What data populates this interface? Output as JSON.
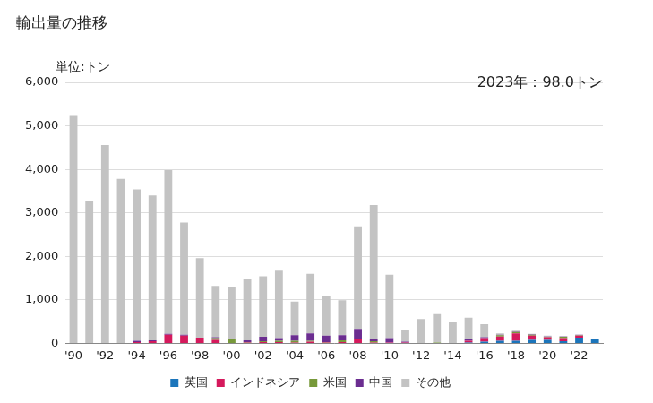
{
  "chart_data": {
    "type": "bar",
    "title": "輸出量の推移",
    "ylabel": "単位:トン",
    "annotation": "2023年：98.0トン",
    "stacked": true,
    "grid": true,
    "legend": "bottom",
    "categories": [
      "'90",
      null,
      "'92",
      null,
      "'94",
      null,
      "'96",
      null,
      "'98",
      null,
      "'00",
      null,
      "'02",
      null,
      "'04",
      null,
      "'06",
      null,
      "'08",
      null,
      "'10",
      null,
      "'12",
      null,
      "'14",
      null,
      "'16",
      null,
      "'18",
      null,
      "'20",
      null,
      "'22",
      null
    ],
    "ylim": [
      0,
      6000
    ],
    "yticks": [
      0,
      {
        "value": 1000,
        "label": "1,000"
      },
      {
        "value": 2000,
        "label": "2,000"
      },
      {
        "value": 3000,
        "label": "3,000"
      },
      {
        "value": 4000,
        "label": "4,000"
      },
      {
        "value": 5000,
        "label": "5,000"
      },
      {
        "value": 6000,
        "label": "6,000"
      }
    ],
    "series": [
      {
        "name": "英国",
        "color": "#1b75bb",
        "values": [
          0,
          0,
          0,
          0,
          0,
          0,
          0,
          0,
          0,
          0,
          0,
          0,
          0,
          0,
          0,
          0,
          0,
          0,
          0,
          0,
          0,
          0,
          0,
          0,
          0,
          20,
          40,
          60,
          60,
          80,
          80,
          50,
          130,
          98
        ]
      },
      {
        "name": "インドネシア",
        "color": "#d5195c",
        "values": [
          0,
          0,
          0,
          0,
          30,
          50,
          200,
          180,
          130,
          80,
          0,
          20,
          30,
          30,
          20,
          40,
          20,
          30,
          90,
          20,
          20,
          20,
          0,
          0,
          0,
          40,
          80,
          100,
          170,
          100,
          60,
          70,
          50,
          0
        ]
      },
      {
        "name": "米国",
        "color": "#77993a",
        "values": [
          0,
          0,
          0,
          0,
          0,
          0,
          0,
          0,
          0,
          40,
          110,
          10,
          20,
          30,
          40,
          20,
          10,
          40,
          10,
          30,
          0,
          0,
          0,
          20,
          0,
          0,
          0,
          30,
          30,
          20,
          10,
          30,
          10,
          0
        ]
      },
      {
        "name": "中国",
        "color": "#6b2d90",
        "values": [
          0,
          0,
          0,
          0,
          30,
          20,
          20,
          20,
          0,
          20,
          0,
          40,
          100,
          60,
          130,
          170,
          150,
          120,
          230,
          60,
          100,
          20,
          0,
          0,
          0,
          40,
          20,
          10,
          10,
          10,
          10,
          10,
          10,
          0
        ]
      },
      {
        "name": "その他",
        "color": "#c3c3c3",
        "values": [
          5250,
          3270,
          4560,
          3780,
          3480,
          3330,
          3760,
          2580,
          1830,
          1180,
          1190,
          1400,
          1390,
          1550,
          770,
          1370,
          920,
          800,
          2360,
          3070,
          1460,
          260,
          560,
          650,
          480,
          490,
          300,
          30,
          20,
          10,
          20,
          10,
          0,
          0
        ]
      }
    ]
  }
}
